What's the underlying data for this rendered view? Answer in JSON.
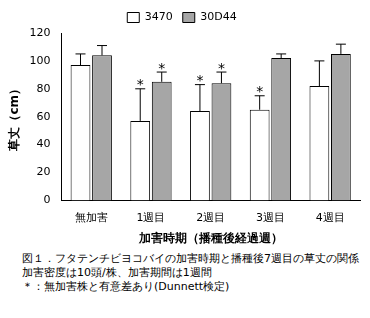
{
  "chart_data": {
    "type": "bar",
    "categories": [
      "無加害",
      "1週目",
      "2週目",
      "3週目",
      "4週目"
    ],
    "series": [
      {
        "name": "3470",
        "color": "#ffffff",
        "values": [
          97,
          57,
          64,
          65,
          82
        ],
        "errors": [
          8,
          23,
          19,
          10,
          18
        ],
        "marks": [
          null,
          "*",
          "*",
          "*",
          null
        ]
      },
      {
        "name": "30D44",
        "color": "#a6a6a6",
        "values": [
          104,
          85,
          84,
          102,
          105
        ],
        "errors": [
          7,
          7,
          8,
          3,
          7
        ],
        "marks": [
          null,
          "*",
          "*",
          null,
          null
        ]
      }
    ],
    "x_label": "加害時期（播種後経過週）",
    "y_label": "草丈（cm）",
    "ylim": [
      0,
      120
    ],
    "yticks": [
      0,
      20,
      40,
      60,
      80,
      100,
      120
    ],
    "grid": false,
    "legend": "top",
    "caption": [
      "図１．フタテンチビヨコバイの加害時期と播種後7週目の草丈の関係",
      "加害密度は10頭/株、加害期間は1週間",
      "＊：無加害株と有意差あり(Dunnett検定)"
    ]
  }
}
